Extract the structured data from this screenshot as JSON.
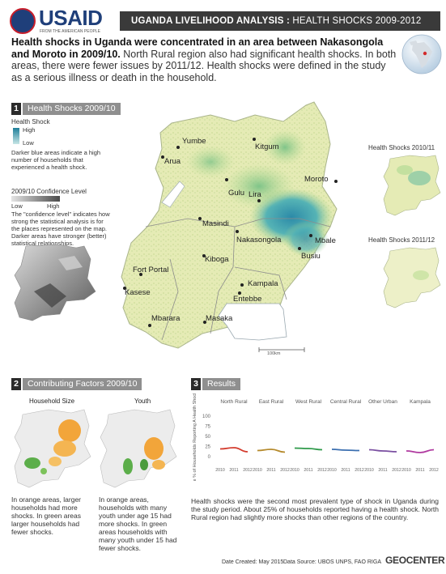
{
  "header": {
    "logo_name": "USAID",
    "logo_tagline": "FROM THE AMERICAN PEOPLE",
    "title_bold": "UGANDA LIVELIHOOD ANALYSIS :",
    "title_rest": "HEALTH SHOCKS  2009-2012"
  },
  "intro": {
    "bold": "Health shocks in Uganda were concentrated in an area between Nakasongola and Moroto in 2009/10.",
    "rest": "North Rural region also had significant health shocks. In both areas, there were fewer issues by 2011/12. Health shocks were defined in the study as a serious illness or death in the household."
  },
  "section1": {
    "number": "1",
    "label": "Health Shocks 2009/10",
    "legend_title": "Health Shock",
    "legend_high": "High",
    "legend_low": "Low",
    "legend_note": "Darker blue areas indicate a high number of households that experienced a health shock.",
    "confidence_title": "2009/10 Confidence Level",
    "confidence_low": "Low",
    "confidence_high": "High",
    "confidence_note": "The \"confidence level\" indicates how strong the statistical analysis is for the places represented on the map. Darker areas have stronger (better) statistical relationships.",
    "scale_label": "100km",
    "cities": [
      "Yumbe",
      "Arua",
      "Kitgum",
      "Gulu",
      "Moroto",
      "Lira",
      "Masindi",
      "Nakasongola",
      "Mbale",
      "Busiu",
      "Kiboga",
      "Fort Portal",
      "Kampala",
      "Kasese",
      "Entebbe",
      "Mbarara",
      "Masaka"
    ]
  },
  "inset_maps": {
    "a": "Health Shocks 2010/11",
    "b": "Health Shocks 2011/12"
  },
  "section2": {
    "number": "2",
    "label": "Contributing Factors 2009/10",
    "map_a_title": "Household Size",
    "map_b_title": "Youth",
    "text_a": "In orange areas, larger households had more shocks. In green areas larger households had fewer shocks.",
    "text_b": "In orange areas, households with many youth under age 15 had more shocks. In green areas households with many youth under 15 had fewer shocks."
  },
  "section3": {
    "number": "3",
    "label": "Results",
    "ylabel": "Average % of Households Reporting A Health Shock",
    "y_ticks": [
      "100",
      "75",
      "50",
      "25",
      "0"
    ],
    "text": "Health shocks were the second most prevalent type of shock in Uganda during the study period. About 25% of households reported having a health shock. North Rural region had slightly more shocks than other regions of the country."
  },
  "chart_data": {
    "type": "line",
    "ylabel": "Average % of Households Reporting A Health Shock",
    "ylim": [
      0,
      100
    ],
    "y_ticks": [
      0,
      25,
      50,
      75,
      100
    ],
    "x": [
      "2010",
      "2011",
      "2012"
    ],
    "panels": [
      {
        "name": "North Rural",
        "values": [
          19,
          22,
          12
        ],
        "color": "#d33a2c"
      },
      {
        "name": "East Rural",
        "values": [
          15,
          18,
          11
        ],
        "color": "#b58a2c"
      },
      {
        "name": "West Rural",
        "values": [
          21,
          20,
          17
        ],
        "color": "#2e9a4a"
      },
      {
        "name": "Central Rural",
        "values": [
          18,
          16,
          15
        ],
        "color": "#3b6fb0"
      },
      {
        "name": "Other Urban",
        "values": [
          17,
          14,
          12
        ],
        "color": "#7a4fa1"
      },
      {
        "name": "Kampala",
        "values": [
          14,
          10,
          17
        ],
        "color": "#b03aa0"
      }
    ]
  },
  "footer": {
    "date": "Date Created: May 2015",
    "source": "Data Source: UBOS UNPS, FAO RIGA",
    "brand": "GEOCENTER"
  },
  "colors": {
    "title_bar": "#3a3a3a",
    "section_tab": "#8f8f8f",
    "map_light": "#e7ecb8",
    "map_green": "#a7d38c",
    "map_blue": "#3aa3b8",
    "factor_orange": "#f2a53a",
    "factor_green": "#5cae4a"
  }
}
